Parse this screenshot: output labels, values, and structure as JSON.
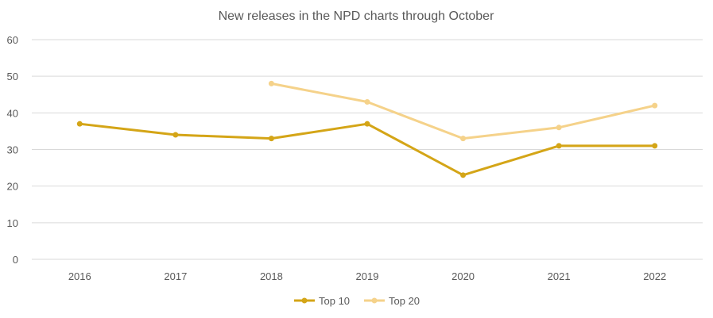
{
  "chart_data": {
    "type": "line",
    "title": "New releases in the NPD charts through October",
    "xlabel": "",
    "ylabel": "",
    "categories": [
      "2016",
      "2017",
      "2018",
      "2019",
      "2020",
      "2021",
      "2022"
    ],
    "ylim": [
      0,
      60
    ],
    "yticks": [
      0,
      10,
      20,
      30,
      40,
      50,
      60
    ],
    "grid": true,
    "legend_position": "bottom",
    "series": [
      {
        "name": "Top 10",
        "color": "#d4a517",
        "values": [
          37,
          34,
          33,
          37,
          23,
          31,
          31
        ]
      },
      {
        "name": "Top 20",
        "color": "#f5d28a",
        "values": [
          null,
          null,
          48,
          43,
          33,
          36,
          42
        ]
      }
    ]
  }
}
